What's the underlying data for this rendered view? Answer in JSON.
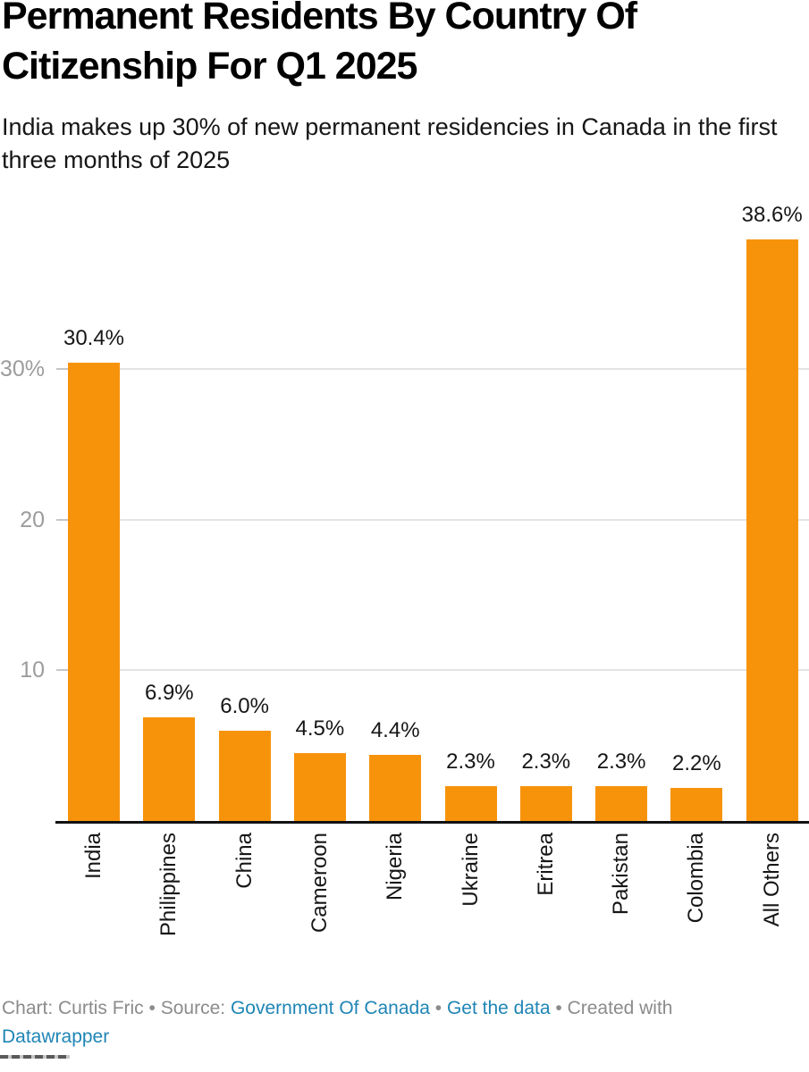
{
  "chart_data": {
    "type": "bar",
    "title": "Permanent Residents By Country Of Citizenship For Q1 2025",
    "subtitle": "India makes up 30% of new permanent residencies in Canada in the first three months of 2025",
    "categories": [
      "India",
      "Philippines",
      "China",
      "Cameroon",
      "Nigeria",
      "Ukraine",
      "Eritrea",
      "Pakistan",
      "Colombia",
      "All Others"
    ],
    "values": [
      30.4,
      6.9,
      6.0,
      4.5,
      4.4,
      2.3,
      2.3,
      2.3,
      2.2,
      38.6
    ],
    "value_labels": [
      "30.4%",
      "6.9%",
      "6.0%",
      "4.5%",
      "4.4%",
      "2.3%",
      "2.3%",
      "2.3%",
      "2.2%",
      "38.6%"
    ],
    "unit": "%",
    "xlabel": "",
    "ylabel": "",
    "ylim": [
      0,
      40
    ],
    "yticks": [
      {
        "value": 10,
        "label": "10"
      },
      {
        "value": 20,
        "label": "20"
      },
      {
        "value": 30,
        "label": "30%"
      }
    ],
    "grid": true,
    "legend_position": "none"
  },
  "colors": {
    "bar": "#f7930b",
    "grid": "#e4e4e4",
    "tick": "#c6c6c6",
    "tick_label": "#9c9c9c",
    "axis": "#111111",
    "title": "#000000",
    "text": "#161616",
    "footer_text": "#8b8b8b",
    "link": "#1f85b5"
  },
  "footer": {
    "chart_credit": "Chart: Curtis Fric",
    "separator": "•",
    "source_label": "Source:",
    "source_link": "Government Of Canada",
    "data_link": "Get the data",
    "created_with": "Created with",
    "datawrapper_link": "Datawrapper"
  }
}
